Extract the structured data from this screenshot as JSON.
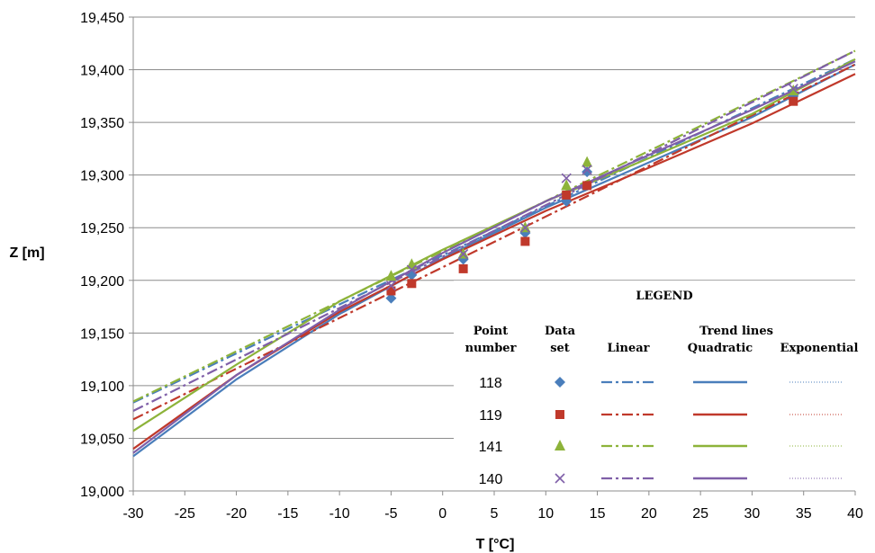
{
  "chart_data": {
    "type": "scatter",
    "xlabel": "T [°C]",
    "ylabel": "Z [m]",
    "xlim": [
      -30,
      40
    ],
    "ylim": [
      19.0,
      19.45
    ],
    "x_ticks": [
      "-30",
      "-25",
      "-20",
      "-15",
      "-10",
      "-5",
      "0",
      "5",
      "10",
      "15",
      "20",
      "25",
      "30",
      "35",
      "40"
    ],
    "y_ticks": [
      "19,000",
      "19,050",
      "19,100",
      "19,150",
      "19,200",
      "19,250",
      "19,300",
      "19,350",
      "19,400",
      "19,450"
    ],
    "grid": "horizontal",
    "legend": {
      "title": "LEGEND",
      "headers": {
        "point_line1": "Point",
        "point_line2": "number",
        "data_line1": "Data",
        "data_line2": "set",
        "trend": "Trend lines",
        "linear": "Linear",
        "quadratic": "Quadratic",
        "exponential": "Exponential"
      },
      "placement": "bottom-right"
    },
    "series": [
      {
        "name": "118",
        "marker": "diamond",
        "color": "#4a7ebb",
        "points": [
          [
            -5,
            19.183
          ],
          [
            -3,
            19.205
          ],
          [
            2,
            19.22
          ],
          [
            8,
            19.245
          ],
          [
            12,
            19.275
          ],
          [
            14,
            19.303
          ],
          [
            34,
            19.375
          ]
        ],
        "linear": [
          19.084,
          19.41
        ],
        "quadratic": [
          [
            -30,
            19.033
          ],
          [
            -20,
            19.106
          ],
          [
            -10,
            19.168
          ],
          [
            0,
            19.221
          ],
          [
            10,
            19.269
          ],
          [
            20,
            19.312
          ],
          [
            30,
            19.355
          ],
          [
            40,
            19.405
          ]
        ]
      },
      {
        "name": "119",
        "marker": "square",
        "color": "#c0392b",
        "points": [
          [
            -5,
            19.19
          ],
          [
            -3,
            19.197
          ],
          [
            2,
            19.211
          ],
          [
            8,
            19.237
          ],
          [
            12,
            19.281
          ],
          [
            14,
            19.29
          ],
          [
            34,
            19.37
          ]
        ],
        "linear": [
          19.068,
          19.405
        ],
        "quadratic": [
          [
            -30,
            19.04
          ],
          [
            -20,
            19.11
          ],
          [
            -10,
            19.17
          ],
          [
            0,
            19.22
          ],
          [
            10,
            19.266
          ],
          [
            20,
            19.307
          ],
          [
            30,
            19.349
          ],
          [
            40,
            19.396
          ]
        ]
      },
      {
        "name": "141",
        "marker": "triangle",
        "color": "#8db33a",
        "points": [
          [
            -5,
            19.204
          ],
          [
            -3,
            19.215
          ],
          [
            2,
            19.225
          ],
          [
            8,
            19.25
          ],
          [
            12,
            19.29
          ],
          [
            14,
            19.312
          ],
          [
            34,
            19.38
          ]
        ],
        "linear": [
          19.085,
          19.418
        ],
        "quadratic": [
          [
            -30,
            19.057
          ],
          [
            -20,
            19.12
          ],
          [
            -10,
            19.18
          ],
          [
            0,
            19.229
          ],
          [
            10,
            19.275
          ],
          [
            20,
            19.316
          ],
          [
            30,
            19.358
          ],
          [
            40,
            19.41
          ]
        ]
      },
      {
        "name": "140",
        "marker": "cross",
        "color": "#7f5fa8",
        "points": [
          [
            -5,
            19.195
          ],
          [
            -3,
            19.21
          ],
          [
            2,
            19.225
          ],
          [
            8,
            19.25
          ],
          [
            12,
            19.297
          ],
          [
            14,
            19.305
          ],
          [
            34,
            19.382
          ]
        ],
        "linear": [
          19.076,
          19.418
        ],
        "quadratic": [
          [
            -30,
            19.036
          ],
          [
            -20,
            19.11
          ],
          [
            -10,
            19.172
          ],
          [
            0,
            19.226
          ],
          [
            10,
            19.275
          ],
          [
            20,
            19.319
          ],
          [
            30,
            19.362
          ],
          [
            40,
            19.408
          ]
        ]
      }
    ]
  }
}
